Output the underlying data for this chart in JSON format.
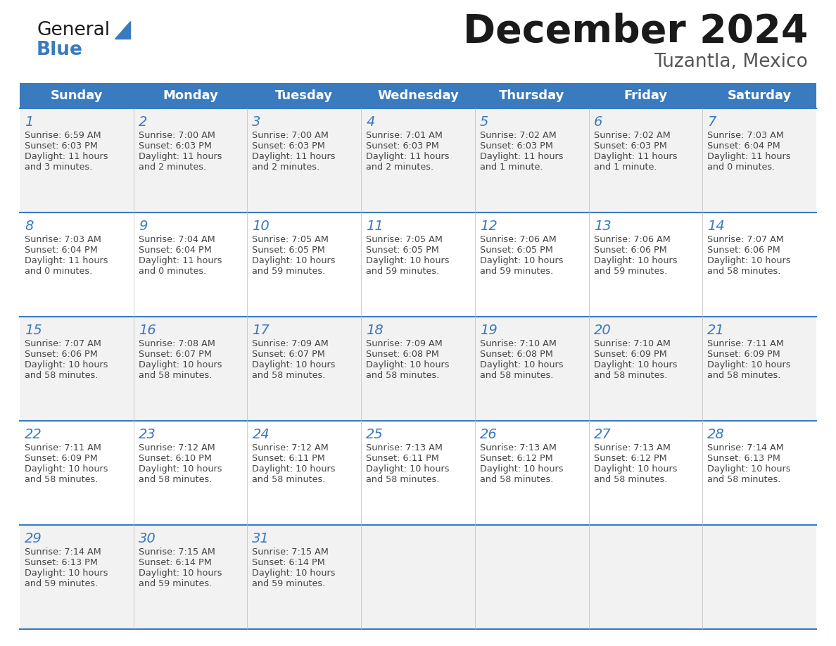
{
  "title": "December 2024",
  "subtitle": "Tuzantla, Mexico",
  "days_of_week": [
    "Sunday",
    "Monday",
    "Tuesday",
    "Wednesday",
    "Thursday",
    "Friday",
    "Saturday"
  ],
  "header_bg": "#3a7abf",
  "header_text_color": "#ffffff",
  "row_bg_odd": "#f2f2f2",
  "row_bg_even": "#ffffff",
  "day_num_color": "#3a7abf",
  "text_color": "#444444",
  "grid_line_color": "#3a7abf",
  "logo_general_color": "#1a1a1a",
  "logo_blue_color": "#3a7abf",
  "title_color": "#1a1a1a",
  "subtitle_color": "#555555",
  "calendar_data": [
    [
      {
        "day": 1,
        "sunrise": "6:59 AM",
        "sunset": "6:03 PM",
        "daylight_line1": "Daylight: 11 hours",
        "daylight_line2": "and 3 minutes."
      },
      {
        "day": 2,
        "sunrise": "7:00 AM",
        "sunset": "6:03 PM",
        "daylight_line1": "Daylight: 11 hours",
        "daylight_line2": "and 2 minutes."
      },
      {
        "day": 3,
        "sunrise": "7:00 AM",
        "sunset": "6:03 PM",
        "daylight_line1": "Daylight: 11 hours",
        "daylight_line2": "and 2 minutes."
      },
      {
        "day": 4,
        "sunrise": "7:01 AM",
        "sunset": "6:03 PM",
        "daylight_line1": "Daylight: 11 hours",
        "daylight_line2": "and 2 minutes."
      },
      {
        "day": 5,
        "sunrise": "7:02 AM",
        "sunset": "6:03 PM",
        "daylight_line1": "Daylight: 11 hours",
        "daylight_line2": "and 1 minute."
      },
      {
        "day": 6,
        "sunrise": "7:02 AM",
        "sunset": "6:03 PM",
        "daylight_line1": "Daylight: 11 hours",
        "daylight_line2": "and 1 minute."
      },
      {
        "day": 7,
        "sunrise": "7:03 AM",
        "sunset": "6:04 PM",
        "daylight_line1": "Daylight: 11 hours",
        "daylight_line2": "and 0 minutes."
      }
    ],
    [
      {
        "day": 8,
        "sunrise": "7:03 AM",
        "sunset": "6:04 PM",
        "daylight_line1": "Daylight: 11 hours",
        "daylight_line2": "and 0 minutes."
      },
      {
        "day": 9,
        "sunrise": "7:04 AM",
        "sunset": "6:04 PM",
        "daylight_line1": "Daylight: 11 hours",
        "daylight_line2": "and 0 minutes."
      },
      {
        "day": 10,
        "sunrise": "7:05 AM",
        "sunset": "6:05 PM",
        "daylight_line1": "Daylight: 10 hours",
        "daylight_line2": "and 59 minutes."
      },
      {
        "day": 11,
        "sunrise": "7:05 AM",
        "sunset": "6:05 PM",
        "daylight_line1": "Daylight: 10 hours",
        "daylight_line2": "and 59 minutes."
      },
      {
        "day": 12,
        "sunrise": "7:06 AM",
        "sunset": "6:05 PM",
        "daylight_line1": "Daylight: 10 hours",
        "daylight_line2": "and 59 minutes."
      },
      {
        "day": 13,
        "sunrise": "7:06 AM",
        "sunset": "6:06 PM",
        "daylight_line1": "Daylight: 10 hours",
        "daylight_line2": "and 59 minutes."
      },
      {
        "day": 14,
        "sunrise": "7:07 AM",
        "sunset": "6:06 PM",
        "daylight_line1": "Daylight: 10 hours",
        "daylight_line2": "and 58 minutes."
      }
    ],
    [
      {
        "day": 15,
        "sunrise": "7:07 AM",
        "sunset": "6:06 PM",
        "daylight_line1": "Daylight: 10 hours",
        "daylight_line2": "and 58 minutes."
      },
      {
        "day": 16,
        "sunrise": "7:08 AM",
        "sunset": "6:07 PM",
        "daylight_line1": "Daylight: 10 hours",
        "daylight_line2": "and 58 minutes."
      },
      {
        "day": 17,
        "sunrise": "7:09 AM",
        "sunset": "6:07 PM",
        "daylight_line1": "Daylight: 10 hours",
        "daylight_line2": "and 58 minutes."
      },
      {
        "day": 18,
        "sunrise": "7:09 AM",
        "sunset": "6:08 PM",
        "daylight_line1": "Daylight: 10 hours",
        "daylight_line2": "and 58 minutes."
      },
      {
        "day": 19,
        "sunrise": "7:10 AM",
        "sunset": "6:08 PM",
        "daylight_line1": "Daylight: 10 hours",
        "daylight_line2": "and 58 minutes."
      },
      {
        "day": 20,
        "sunrise": "7:10 AM",
        "sunset": "6:09 PM",
        "daylight_line1": "Daylight: 10 hours",
        "daylight_line2": "and 58 minutes."
      },
      {
        "day": 21,
        "sunrise": "7:11 AM",
        "sunset": "6:09 PM",
        "daylight_line1": "Daylight: 10 hours",
        "daylight_line2": "and 58 minutes."
      }
    ],
    [
      {
        "day": 22,
        "sunrise": "7:11 AM",
        "sunset": "6:09 PM",
        "daylight_line1": "Daylight: 10 hours",
        "daylight_line2": "and 58 minutes."
      },
      {
        "day": 23,
        "sunrise": "7:12 AM",
        "sunset": "6:10 PM",
        "daylight_line1": "Daylight: 10 hours",
        "daylight_line2": "and 58 minutes."
      },
      {
        "day": 24,
        "sunrise": "7:12 AM",
        "sunset": "6:11 PM",
        "daylight_line1": "Daylight: 10 hours",
        "daylight_line2": "and 58 minutes."
      },
      {
        "day": 25,
        "sunrise": "7:13 AM",
        "sunset": "6:11 PM",
        "daylight_line1": "Daylight: 10 hours",
        "daylight_line2": "and 58 minutes."
      },
      {
        "day": 26,
        "sunrise": "7:13 AM",
        "sunset": "6:12 PM",
        "daylight_line1": "Daylight: 10 hours",
        "daylight_line2": "and 58 minutes."
      },
      {
        "day": 27,
        "sunrise": "7:13 AM",
        "sunset": "6:12 PM",
        "daylight_line1": "Daylight: 10 hours",
        "daylight_line2": "and 58 minutes."
      },
      {
        "day": 28,
        "sunrise": "7:14 AM",
        "sunset": "6:13 PM",
        "daylight_line1": "Daylight: 10 hours",
        "daylight_line2": "and 58 minutes."
      }
    ],
    [
      {
        "day": 29,
        "sunrise": "7:14 AM",
        "sunset": "6:13 PM",
        "daylight_line1": "Daylight: 10 hours",
        "daylight_line2": "and 59 minutes."
      },
      {
        "day": 30,
        "sunrise": "7:15 AM",
        "sunset": "6:14 PM",
        "daylight_line1": "Daylight: 10 hours",
        "daylight_line2": "and 59 minutes."
      },
      {
        "day": 31,
        "sunrise": "7:15 AM",
        "sunset": "6:14 PM",
        "daylight_line1": "Daylight: 10 hours",
        "daylight_line2": "and 59 minutes."
      },
      null,
      null,
      null,
      null
    ]
  ]
}
